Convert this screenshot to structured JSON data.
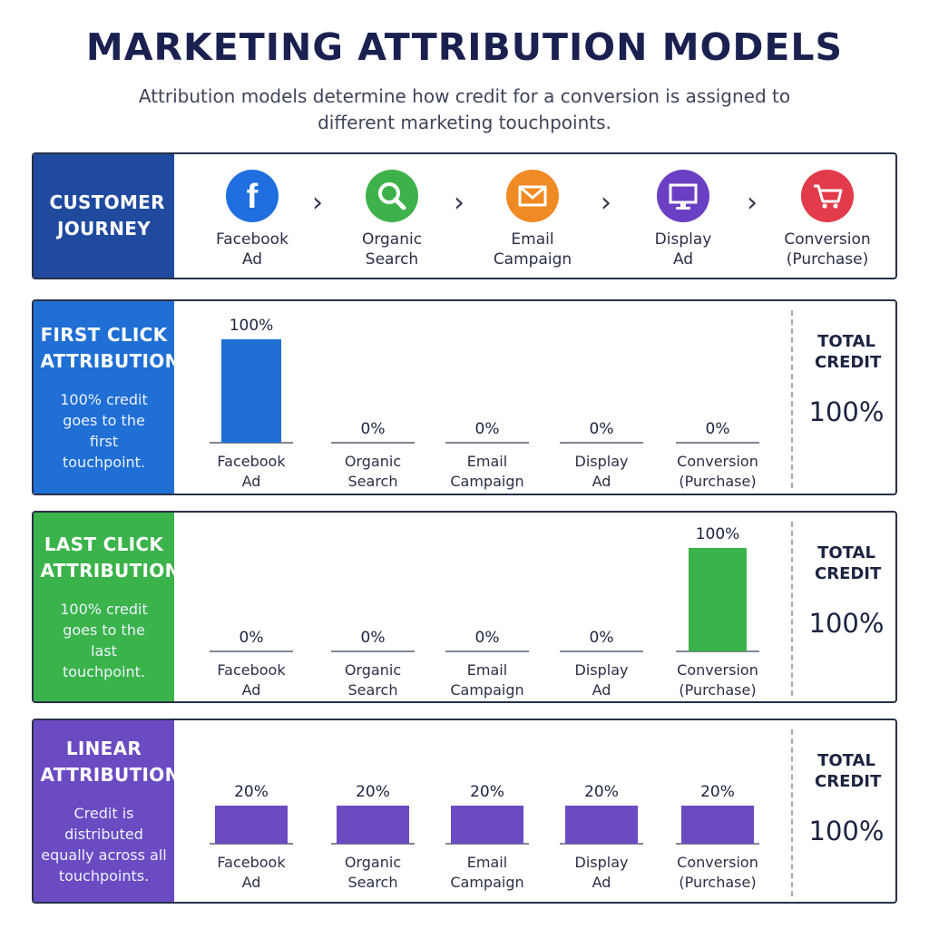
{
  "header": {
    "title": "MARKETING ATTRIBUTION MODELS",
    "subtitle": "Attribution models determine how credit for a conversion is assigned to different marketing touchpoints."
  },
  "journey": {
    "title": "CUSTOMER JOURNEY",
    "color": "#1f4a9e",
    "touchpoints": [
      {
        "label": "Facebook Ad",
        "icon": "facebook-icon",
        "color": "#1f6fe0"
      },
      {
        "label": "Organic Search",
        "icon": "magnifier-icon",
        "color": "#3db14a"
      },
      {
        "label": "Email Campaign",
        "icon": "envelope-icon",
        "color": "#f08a24"
      },
      {
        "label": "Display Ad",
        "icon": "monitor-icon",
        "color": "#6b3fc4"
      },
      {
        "label": "Conversion (Purchase)",
        "icon": "shopping-cart-icon",
        "color": "#e23b4a"
      }
    ]
  },
  "total_credit_label": "TOTAL CREDIT",
  "chart_data": [
    {
      "type": "bar",
      "title": "FIRST CLICK ATTRIBUTION",
      "description": "100% credit goes to the first touchpoint.",
      "color": "#1f6fd4",
      "categories": [
        "Facebook Ad",
        "Organic Search",
        "Email Campaign",
        "Display Ad",
        "Conversion (Purchase)"
      ],
      "values": [
        100,
        0,
        0,
        0,
        0
      ],
      "value_labels": [
        "100%",
        "0%",
        "0%",
        "0%",
        "0%"
      ],
      "total": "100%",
      "ylim": [
        0,
        100
      ]
    },
    {
      "type": "bar",
      "title": "LAST CLICK ATTRIBUTION",
      "description": "100% credit goes to the last touchpoint.",
      "color": "#3ab34a",
      "categories": [
        "Facebook Ad",
        "Organic Search",
        "Email Campaign",
        "Display Ad",
        "Conversion (Purchase)"
      ],
      "values": [
        0,
        0,
        0,
        0,
        100
      ],
      "value_labels": [
        "0%",
        "0%",
        "0%",
        "0%",
        "100%"
      ],
      "total": "100%",
      "ylim": [
        0,
        100
      ]
    },
    {
      "type": "bar",
      "title": "LINEAR ATTRIBUTION",
      "description": "Credit is distributed equally across all touchpoints.",
      "color": "#6a4bc2",
      "categories": [
        "Facebook Ad",
        "Organic Search",
        "Email Campaign",
        "Display Ad",
        "Conversion (Purchase)"
      ],
      "values": [
        20,
        20,
        20,
        20,
        20
      ],
      "value_labels": [
        "20%",
        "20%",
        "20%",
        "20%",
        "20%"
      ],
      "total": "100%",
      "ylim": [
        0,
        100
      ]
    }
  ]
}
